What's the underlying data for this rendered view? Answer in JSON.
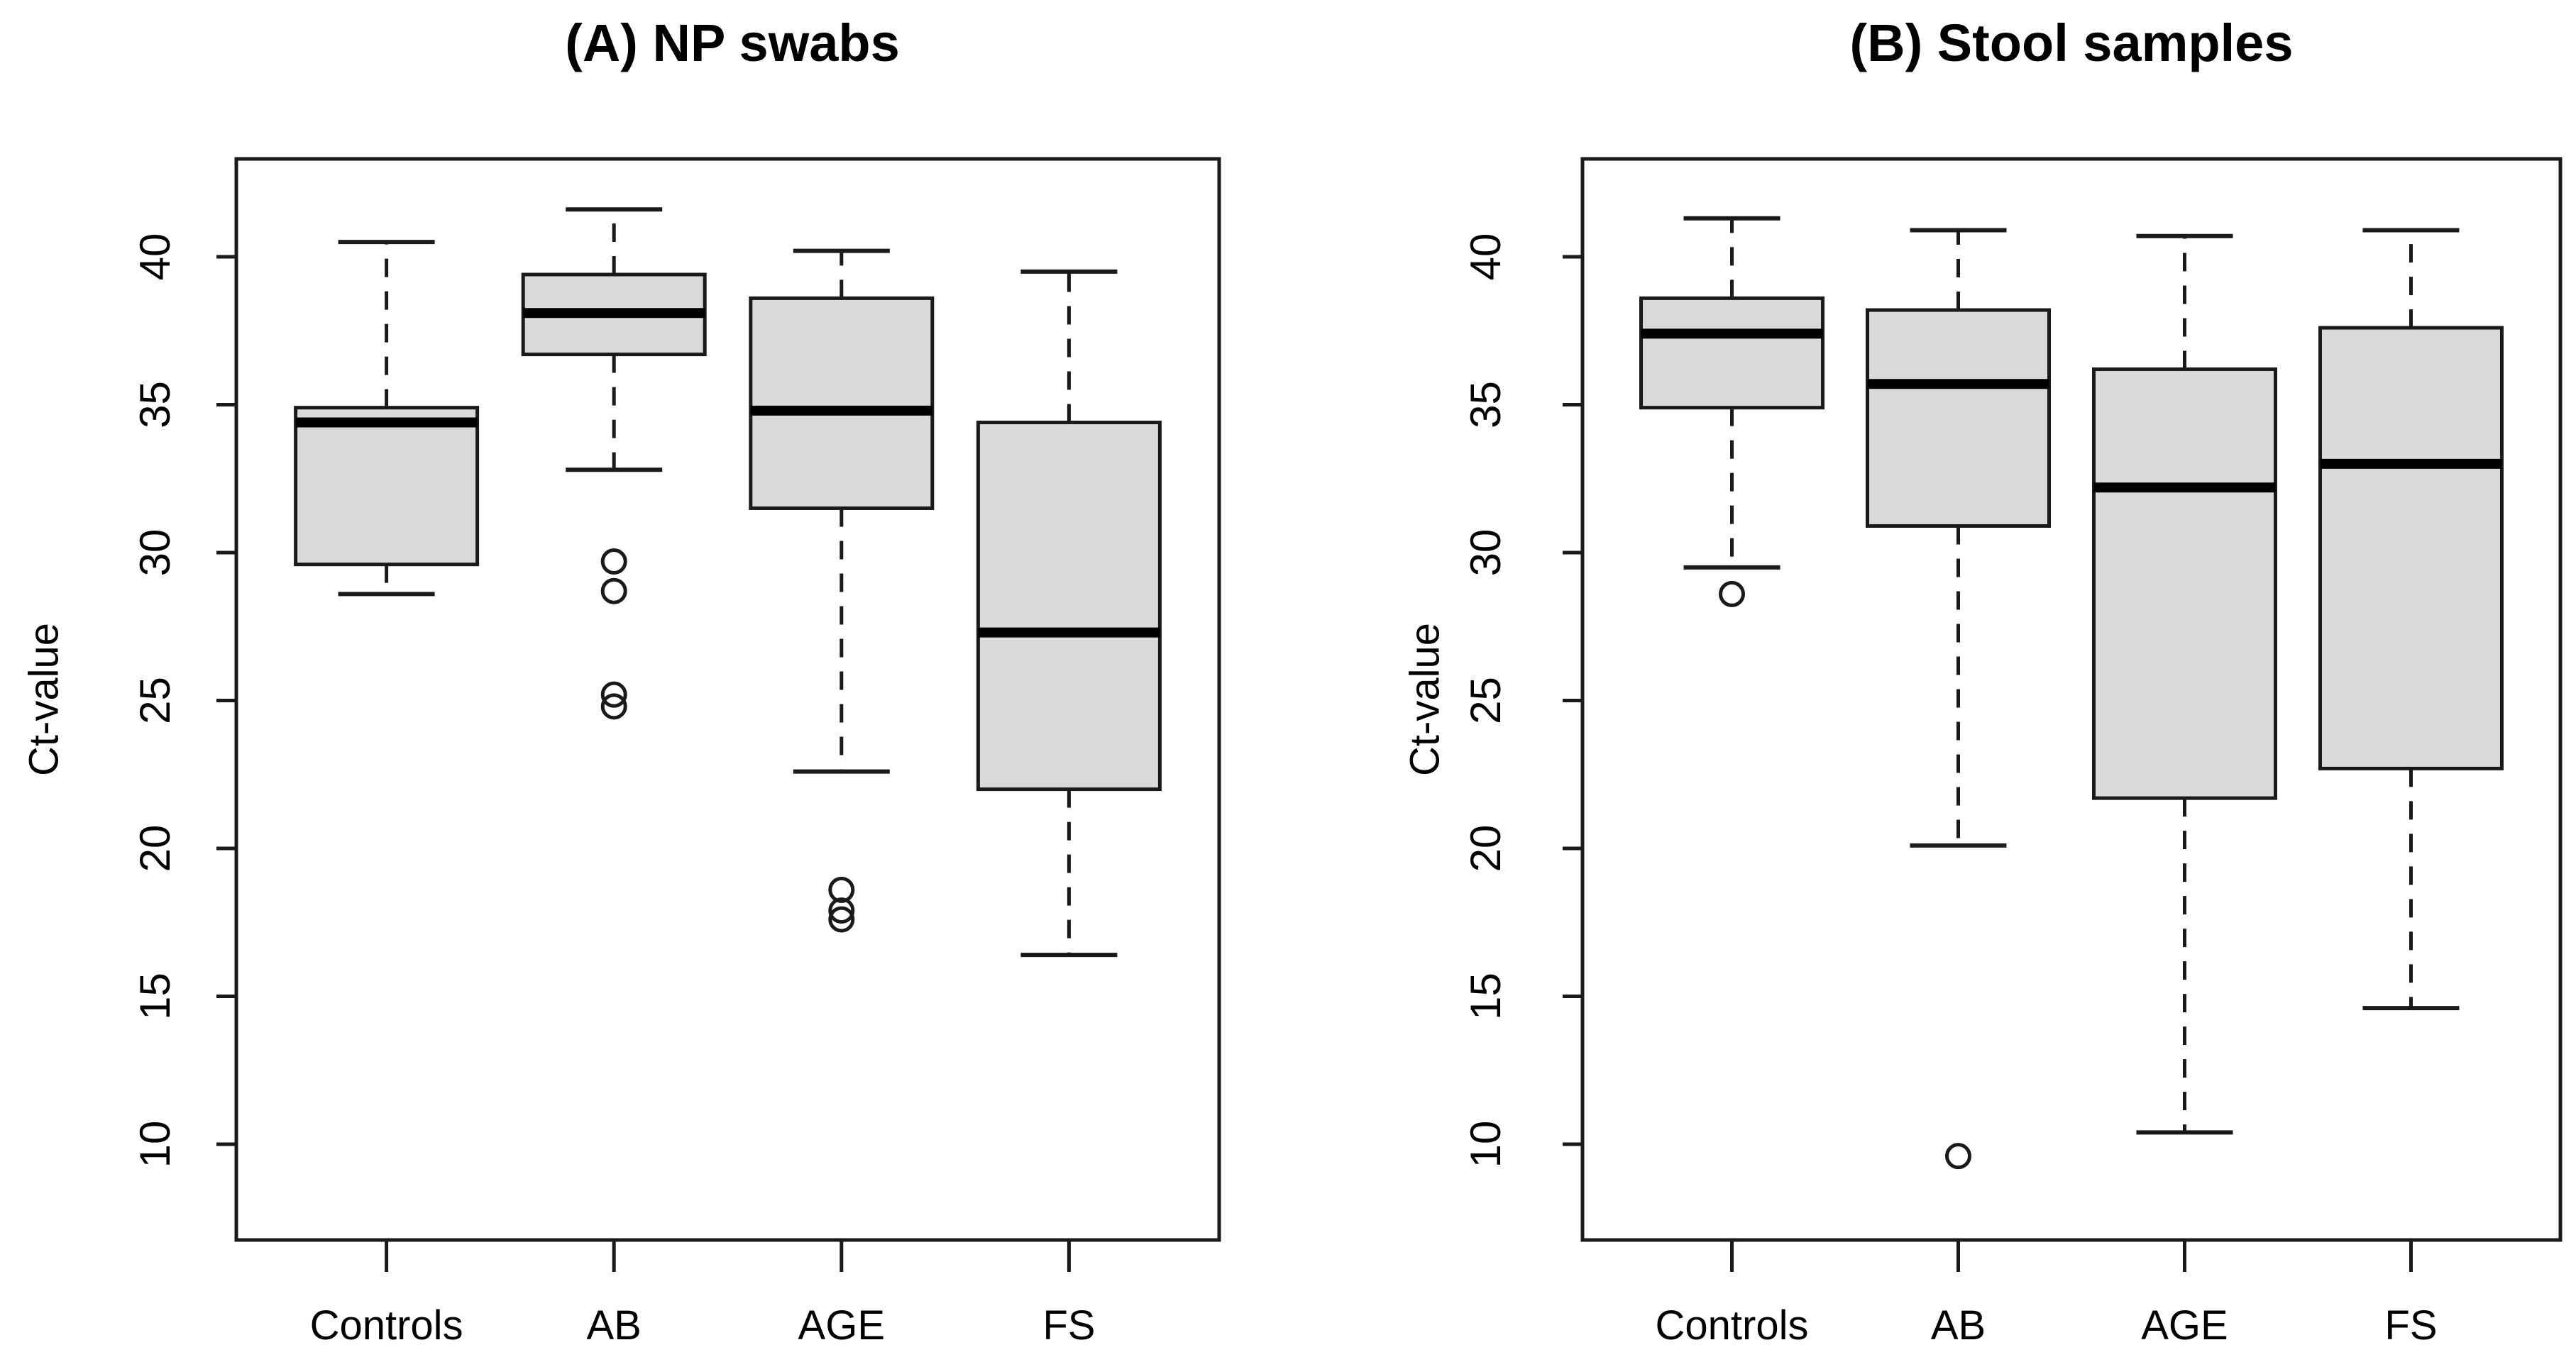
{
  "figure": {
    "background": "#ffffff",
    "axis_color": "#000000",
    "box_fill": "#d9d9d9",
    "box_stroke": "#1a1a1a",
    "y_axis_label": "Ct-value",
    "categories": [
      "Controls",
      "AB",
      "AGE",
      "FS"
    ],
    "y_ticks": [
      10,
      15,
      20,
      25,
      30,
      35,
      40
    ]
  },
  "chart_data": [
    {
      "type": "boxplot",
      "title": "(A) NP swabs",
      "xlabel": "",
      "ylabel": "Ct-value",
      "categories": [
        "Controls",
        "AB",
        "AGE",
        "FS"
      ],
      "y_ticks": [
        10,
        15,
        20,
        25,
        30,
        35,
        40
      ],
      "ylim": [
        6.8,
        43.3
      ],
      "grid": false,
      "legend": "none",
      "series": [
        {
          "name": "Controls",
          "whisker_low": 28.6,
          "q1": 29.6,
          "median": 34.4,
          "q3": 34.9,
          "whisker_high": 40.5,
          "outliers": []
        },
        {
          "name": "AB",
          "whisker_low": 32.8,
          "q1": 36.7,
          "median": 38.1,
          "q3": 39.4,
          "whisker_high": 41.6,
          "outliers": [
            29.7,
            28.7,
            25.2,
            24.8
          ]
        },
        {
          "name": "AGE",
          "whisker_low": 22.6,
          "q1": 31.5,
          "median": 34.8,
          "q3": 38.6,
          "whisker_high": 40.2,
          "outliers": [
            18.6,
            17.9,
            17.6
          ]
        },
        {
          "name": "FS",
          "whisker_low": 16.4,
          "q1": 22.0,
          "median": 27.3,
          "q3": 34.4,
          "whisker_high": 39.5,
          "outliers": []
        }
      ]
    },
    {
      "type": "boxplot",
      "title": "(B) Stool samples",
      "xlabel": "",
      "ylabel": "Ct-value",
      "categories": [
        "Controls",
        "AB",
        "AGE",
        "FS"
      ],
      "y_ticks": [
        10,
        15,
        20,
        25,
        30,
        35,
        40
      ],
      "ylim": [
        6.8,
        43.3
      ],
      "grid": false,
      "legend": "none",
      "series": [
        {
          "name": "Controls",
          "whisker_low": 29.5,
          "q1": 34.9,
          "median": 37.4,
          "q3": 38.6,
          "whisker_high": 41.3,
          "outliers": [
            28.6
          ]
        },
        {
          "name": "AB",
          "whisker_low": 20.1,
          "q1": 30.9,
          "median": 35.7,
          "q3": 38.2,
          "whisker_high": 40.9,
          "outliers": [
            9.6
          ]
        },
        {
          "name": "AGE",
          "whisker_low": 10.4,
          "q1": 21.7,
          "median": 32.2,
          "q3": 36.2,
          "whisker_high": 40.7,
          "outliers": []
        },
        {
          "name": "FS",
          "whisker_low": 14.6,
          "q1": 22.7,
          "median": 33.0,
          "q3": 37.6,
          "whisker_high": 40.9,
          "outliers": []
        }
      ]
    }
  ]
}
